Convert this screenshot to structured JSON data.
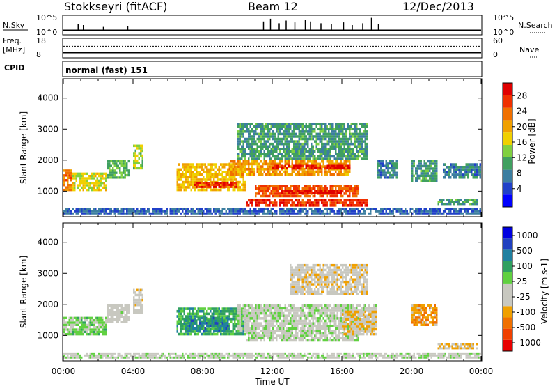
{
  "header": {
    "station": "Stokkseyri (fitACF)",
    "beam": "Beam 12",
    "date": "12/Dec/2013"
  },
  "strip_noise": {
    "left_label": "N.Sky",
    "left_ticks": [
      "10^5",
      "10^0"
    ],
    "right_ticks": [
      "10^5",
      "10^0"
    ],
    "right_label": "N.Search",
    "baseline_fraction": 0.22,
    "spikes": [
      {
        "time": 0.85,
        "level": 0.55
      },
      {
        "time": 1.15,
        "level": 0.5
      },
      {
        "time": 2.3,
        "level": 0.4
      },
      {
        "time": 3.7,
        "level": 0.45
      },
      {
        "time": 11.5,
        "level": 0.7
      },
      {
        "time": 11.9,
        "level": 0.85
      },
      {
        "time": 12.4,
        "level": 0.6
      },
      {
        "time": 12.8,
        "level": 0.75
      },
      {
        "time": 13.3,
        "level": 0.65
      },
      {
        "time": 13.9,
        "level": 0.8
      },
      {
        "time": 14.2,
        "level": 0.7
      },
      {
        "time": 14.8,
        "level": 0.6
      },
      {
        "time": 15.4,
        "level": 0.55
      },
      {
        "time": 16.1,
        "level": 0.65
      },
      {
        "time": 16.6,
        "level": 0.5
      },
      {
        "time": 17.2,
        "level": 0.6
      },
      {
        "time": 17.7,
        "level": 0.9
      },
      {
        "time": 18.1,
        "level": 0.55
      }
    ]
  },
  "strip_freq": {
    "left_label_1": "Freq.",
    "left_label_2": "[MHz]",
    "left_ticks": [
      "18",
      "8"
    ],
    "right_ticks": [
      "60",
      "0"
    ],
    "right_label": "Nave",
    "freq_level": 0.25,
    "nave_level": 0.6
  },
  "cpid": {
    "label": "CPID",
    "value": "normal (fast) 151"
  },
  "axes": {
    "x_ticks": [
      "00:00",
      "04:00",
      "08:00",
      "12:00",
      "16:00",
      "20:00",
      "00:00"
    ],
    "x_label": "Time UT",
    "y_ticks": [
      "1000",
      "2000",
      "3000",
      "4000"
    ],
    "y_label": "Slant Range [km]",
    "x_range_hours": [
      0,
      24
    ],
    "y_range_km": [
      200,
      4600
    ]
  },
  "colors": {
    "power": [
      "#0000ff",
      "#2040c8",
      "#3c7ea0",
      "#40a060",
      "#80d040",
      "#f0d000",
      "#f0a000",
      "#f07000",
      "#f03000",
      "#e00000"
    ],
    "velocity": [
      "#e80000",
      "#f04000",
      "#f07000",
      "#f0a000",
      "#c8c8c0",
      "#c8c8c0",
      "#60d040",
      "#30a060",
      "#2080a0",
      "#2040c0",
      "#0000e0"
    ],
    "ground": "#c8c8c0"
  },
  "chart_data": [
    {
      "type": "heatmap",
      "name": "power",
      "colorbar_label": "Power [dB]",
      "colorbar_ticks": [
        "4",
        "8",
        "12",
        "16",
        "20",
        "24",
        "28"
      ],
      "colorbar_range": [
        0,
        30
      ],
      "regions": [
        {
          "t0": 0.0,
          "t1": 0.5,
          "r0": 1000,
          "r1": 1700,
          "value": 22
        },
        {
          "t0": 0.5,
          "t1": 2.5,
          "r0": 1000,
          "r1": 1600,
          "value": 16
        },
        {
          "t0": 2.5,
          "t1": 3.8,
          "r0": 1400,
          "r1": 2000,
          "value": 12
        },
        {
          "t0": 4.0,
          "t1": 4.6,
          "r0": 1700,
          "r1": 2500,
          "value": 14
        },
        {
          "t0": 6.5,
          "t1": 10.5,
          "r0": 1000,
          "r1": 1900,
          "value": 18
        },
        {
          "t0": 7.5,
          "t1": 10.0,
          "r0": 1100,
          "r1": 1300,
          "value": 26
        },
        {
          "t0": 9.5,
          "t1": 16.5,
          "r0": 1500,
          "r1": 2000,
          "value": 20
        },
        {
          "t0": 12.0,
          "t1": 16.5,
          "r0": 1700,
          "r1": 1850,
          "value": 28
        },
        {
          "t0": 11.0,
          "t1": 17.0,
          "r0": 800,
          "r1": 1200,
          "value": 24
        },
        {
          "t0": 12.5,
          "t1": 16.0,
          "r0": 900,
          "r1": 1050,
          "value": 29
        },
        {
          "t0": 10.5,
          "t1": 17.5,
          "r0": 500,
          "r1": 750,
          "value": 26
        },
        {
          "t0": 10.0,
          "t1": 17.5,
          "r0": 2000,
          "r1": 3200,
          "value": 10
        },
        {
          "t0": 18.0,
          "t1": 19.2,
          "r0": 1400,
          "r1": 2000,
          "value": 8
        },
        {
          "t0": 20.0,
          "t1": 21.5,
          "r0": 1300,
          "r1": 2000,
          "value": 10
        },
        {
          "t0": 21.8,
          "t1": 24.0,
          "r0": 1400,
          "r1": 1900,
          "value": 8
        },
        {
          "t0": 21.5,
          "t1": 23.8,
          "r0": 550,
          "r1": 750,
          "value": 10
        },
        {
          "t0": 0.0,
          "t1": 24.0,
          "r0": 250,
          "r1": 450,
          "value": 6
        }
      ]
    },
    {
      "type": "heatmap",
      "name": "velocity",
      "colorbar_label": "Velocity [m s-1]",
      "colorbar_ticks": [
        "1000",
        "500",
        "100",
        "25",
        "-25",
        "-100",
        "-500",
        "-1000"
      ],
      "colorbar_range": [
        -1200,
        1200
      ],
      "regions": [
        {
          "t0": 0.0,
          "t1": 0.5,
          "r0": 1000,
          "r1": 1600,
          "value": 100
        },
        {
          "t0": 0.5,
          "t1": 2.5,
          "r0": 1000,
          "r1": 1600,
          "value": 200
        },
        {
          "t0": 2.5,
          "t1": 3.8,
          "r0": 1400,
          "r1": 2000,
          "value": -100
        },
        {
          "t0": 4.0,
          "t1": 4.6,
          "r0": 1700,
          "r1": 2500,
          "value": -200
        },
        {
          "t0": 6.5,
          "t1": 10.5,
          "r0": 1000,
          "r1": 1900,
          "value": 400
        },
        {
          "t0": 7.0,
          "t1": 9.5,
          "r0": 1100,
          "r1": 1600,
          "value": 600
        },
        {
          "t0": 10.0,
          "t1": 18.0,
          "r0": 1100,
          "r1": 2000,
          "value": 0
        },
        {
          "t0": 10.5,
          "t1": 17.0,
          "r0": 800,
          "r1": 1100,
          "value": 0
        },
        {
          "t0": 16.0,
          "t1": 18.0,
          "r0": 1000,
          "r1": 1800,
          "value": -300
        },
        {
          "t0": 13.0,
          "t1": 17.5,
          "r0": 2300,
          "r1": 3300,
          "value": -200
        },
        {
          "t0": 20.0,
          "t1": 21.5,
          "r0": 1300,
          "r1": 2000,
          "value": -500
        },
        {
          "t0": 21.5,
          "t1": 23.8,
          "r0": 550,
          "r1": 750,
          "value": -300
        },
        {
          "t0": 0.0,
          "t1": 24.0,
          "r0": 250,
          "r1": 450,
          "value": 0
        }
      ]
    }
  ]
}
